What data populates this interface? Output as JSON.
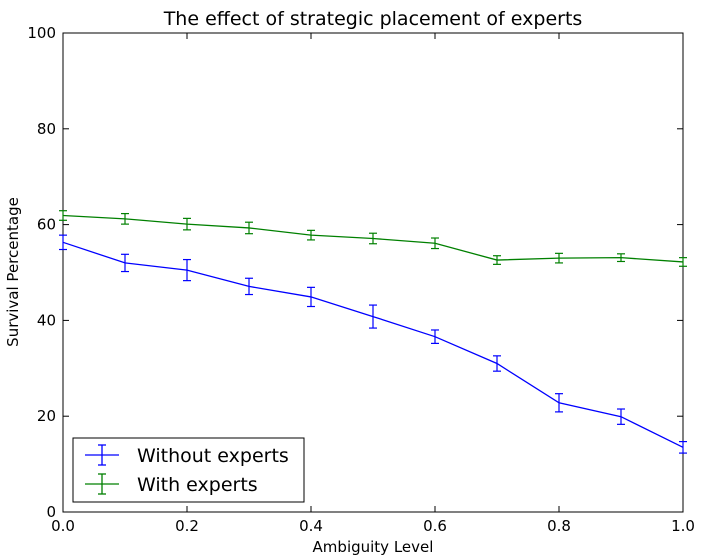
{
  "chart_data": {
    "type": "line",
    "title": "The effect of strategic placement of experts",
    "xlabel": "Ambiguity Level",
    "ylabel": "Survival Percentage",
    "xlim": [
      0.0,
      1.0
    ],
    "ylim": [
      0,
      100
    ],
    "xticks": [
      "0.0",
      "0.2",
      "0.4",
      "0.6",
      "0.8",
      "1.0"
    ],
    "yticks": [
      "0",
      "20",
      "40",
      "60",
      "80",
      "100"
    ],
    "xtick_values": [
      0.0,
      0.2,
      0.4,
      0.6,
      0.8,
      1.0
    ],
    "ytick_values": [
      0,
      20,
      40,
      60,
      80,
      100
    ],
    "x": [
      0.0,
      0.1,
      0.2,
      0.3,
      0.4,
      0.5,
      0.6,
      0.7,
      0.8,
      0.9,
      1.0
    ],
    "grid": false,
    "legend_position": "lower-left",
    "series": [
      {
        "name": "Without experts",
        "color": "#0000ff",
        "values": [
          56.3,
          52.0,
          50.5,
          47.1,
          44.9,
          40.8,
          36.6,
          31.0,
          22.8,
          19.9,
          13.5
        ],
        "errors": [
          1.5,
          1.8,
          2.2,
          1.7,
          2.0,
          2.4,
          1.4,
          1.6,
          1.9,
          1.6,
          1.2
        ]
      },
      {
        "name": "With experts",
        "color": "#008000",
        "values": [
          61.9,
          61.2,
          60.1,
          59.3,
          57.8,
          57.1,
          56.1,
          52.6,
          53.0,
          53.1,
          52.2
        ],
        "errors": [
          1.0,
          1.1,
          1.2,
          1.2,
          1.0,
          1.1,
          1.1,
          0.9,
          1.0,
          0.8,
          0.9
        ]
      }
    ]
  }
}
